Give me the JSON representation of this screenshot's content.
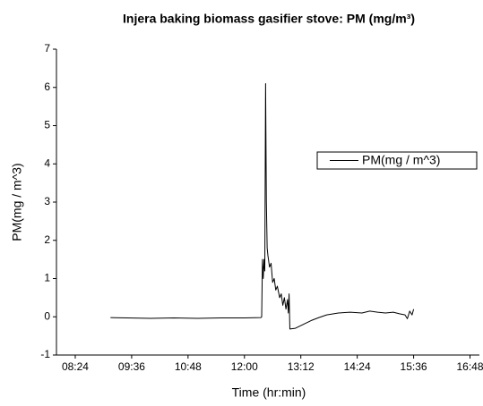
{
  "chart_data": {
    "type": "line",
    "title": "Injera baking biomass gasifier stove: PM (mg/m³)",
    "x_label": "Time (hr:min)",
    "y_label": "PM(mg / m^3)",
    "x": [
      549,
      570,
      600,
      630,
      660,
      690,
      720,
      741,
      742,
      743,
      744,
      745,
      746,
      747,
      748,
      749,
      750,
      752,
      754,
      756,
      758,
      760,
      762,
      765,
      767,
      769,
      771,
      773,
      775,
      776,
      777,
      778,
      785,
      795,
      805,
      815,
      825,
      840,
      855,
      870,
      880,
      890,
      900,
      910,
      918,
      925,
      928,
      931,
      934,
      936
    ],
    "series": [
      {
        "name": "PM(mg / m^3)",
        "color": "#000000",
        "values": [
          -0.02,
          -0.03,
          -0.04,
          -0.03,
          -0.04,
          -0.03,
          -0.03,
          -0.02,
          0.0,
          1.5,
          1.0,
          1.5,
          1.2,
          6.1,
          3.0,
          1.8,
          1.6,
          1.3,
          1.4,
          0.9,
          1.0,
          0.7,
          0.8,
          0.5,
          0.6,
          0.3,
          0.5,
          0.2,
          0.45,
          0.1,
          0.6,
          -0.32,
          -0.3,
          -0.2,
          -0.1,
          -0.02,
          0.05,
          0.1,
          0.12,
          0.1,
          0.15,
          0.12,
          0.1,
          0.12,
          0.08,
          0.05,
          -0.05,
          0.15,
          0.05,
          0.2
        ]
      }
    ],
    "xlim": [
      480,
      1020
    ],
    "xticks": [
      {
        "value": 504,
        "label": "08:24"
      },
      {
        "value": 576,
        "label": "09:36"
      },
      {
        "value": 648,
        "label": "10:48"
      },
      {
        "value": 720,
        "label": "12:00"
      },
      {
        "value": 792,
        "label": "13:12"
      },
      {
        "value": 864,
        "label": "14:24"
      },
      {
        "value": 936,
        "label": "15:36"
      },
      {
        "value": 1008,
        "label": "16:48"
      }
    ],
    "ylim": [
      -1,
      7
    ],
    "yticks": [
      -1,
      0,
      1,
      2,
      3,
      4,
      5,
      6,
      7
    ],
    "legend": "right"
  }
}
